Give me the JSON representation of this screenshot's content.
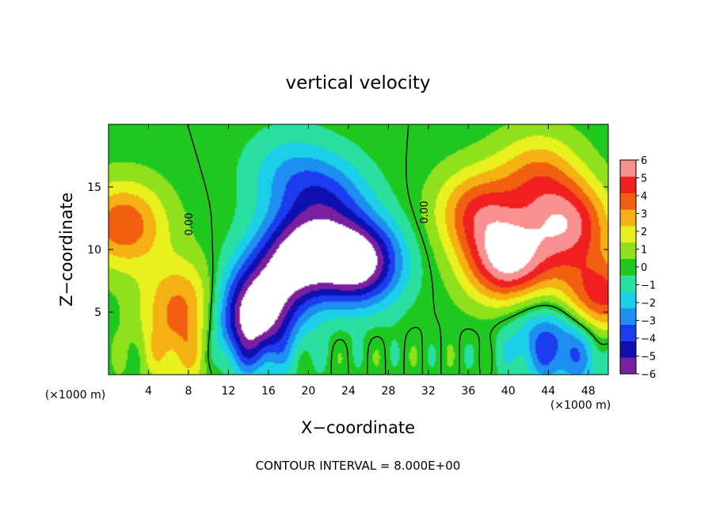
{
  "chart_data": {
    "type": "heatmap",
    "title": "vertical velocity",
    "xlabel": "X−coordinate",
    "ylabel": "Z−coordinate",
    "x_unit": "(×1000 m)",
    "xlim": [
      0,
      50
    ],
    "ylim": [
      0,
      20
    ],
    "x_ticks": [
      4,
      8,
      12,
      16,
      20,
      24,
      28,
      32,
      36,
      40,
      44,
      48
    ],
    "y_ticks": [
      5,
      10,
      15
    ],
    "colorbar": {
      "ticks": [
        "6",
        "5",
        "4",
        "3",
        "2",
        "1",
        "0",
        "−1",
        "−2",
        "−3",
        "−4",
        "−5",
        "−6"
      ],
      "min": -6,
      "max": 6,
      "over_color": "#ffffff",
      "colors": [
        "#7a1fa0",
        "#1010b0",
        "#1c3cf0",
        "#1e8ef0",
        "#1ccfe8",
        "#2ae0a0",
        "#1ec81e",
        "#90e01e",
        "#e8f01e",
        "#f5b014",
        "#f06010",
        "#f02020",
        "#f89090"
      ]
    },
    "contour_labels": [
      "0.00",
      "0.00"
    ],
    "footer": "CONTOUR INTERVAL = 8.000E+00",
    "features": [
      {
        "x": 1.5,
        "z": 12,
        "w": 4
      },
      {
        "x": 7.5,
        "z": 6,
        "w": 3
      },
      {
        "x": 7.5,
        "z": 2,
        "w": 2.5
      },
      {
        "x": 19,
        "z": 9.5,
        "w": -6
      },
      {
        "x": 25,
        "z": 9.0,
        "w": -7
      },
      {
        "x": 15,
        "z": 6,
        "w": -5
      },
      {
        "x": 14,
        "z": 3,
        "w": -4
      },
      {
        "x": 22,
        "z": 14,
        "w": -3
      },
      {
        "x": 18,
        "z": 16,
        "w": -2
      },
      {
        "x": 40,
        "z": 9,
        "w": 6
      },
      {
        "x": 46,
        "z": 12,
        "w": 5
      },
      {
        "x": 43,
        "z": 16,
        "w": 3
      },
      {
        "x": 37,
        "z": 13,
        "w": 4
      },
      {
        "x": 49,
        "z": 6,
        "w": 5
      },
      {
        "x": 44,
        "z": 3,
        "w": -3
      },
      {
        "x": 47,
        "z": 2,
        "w": -2
      }
    ]
  }
}
